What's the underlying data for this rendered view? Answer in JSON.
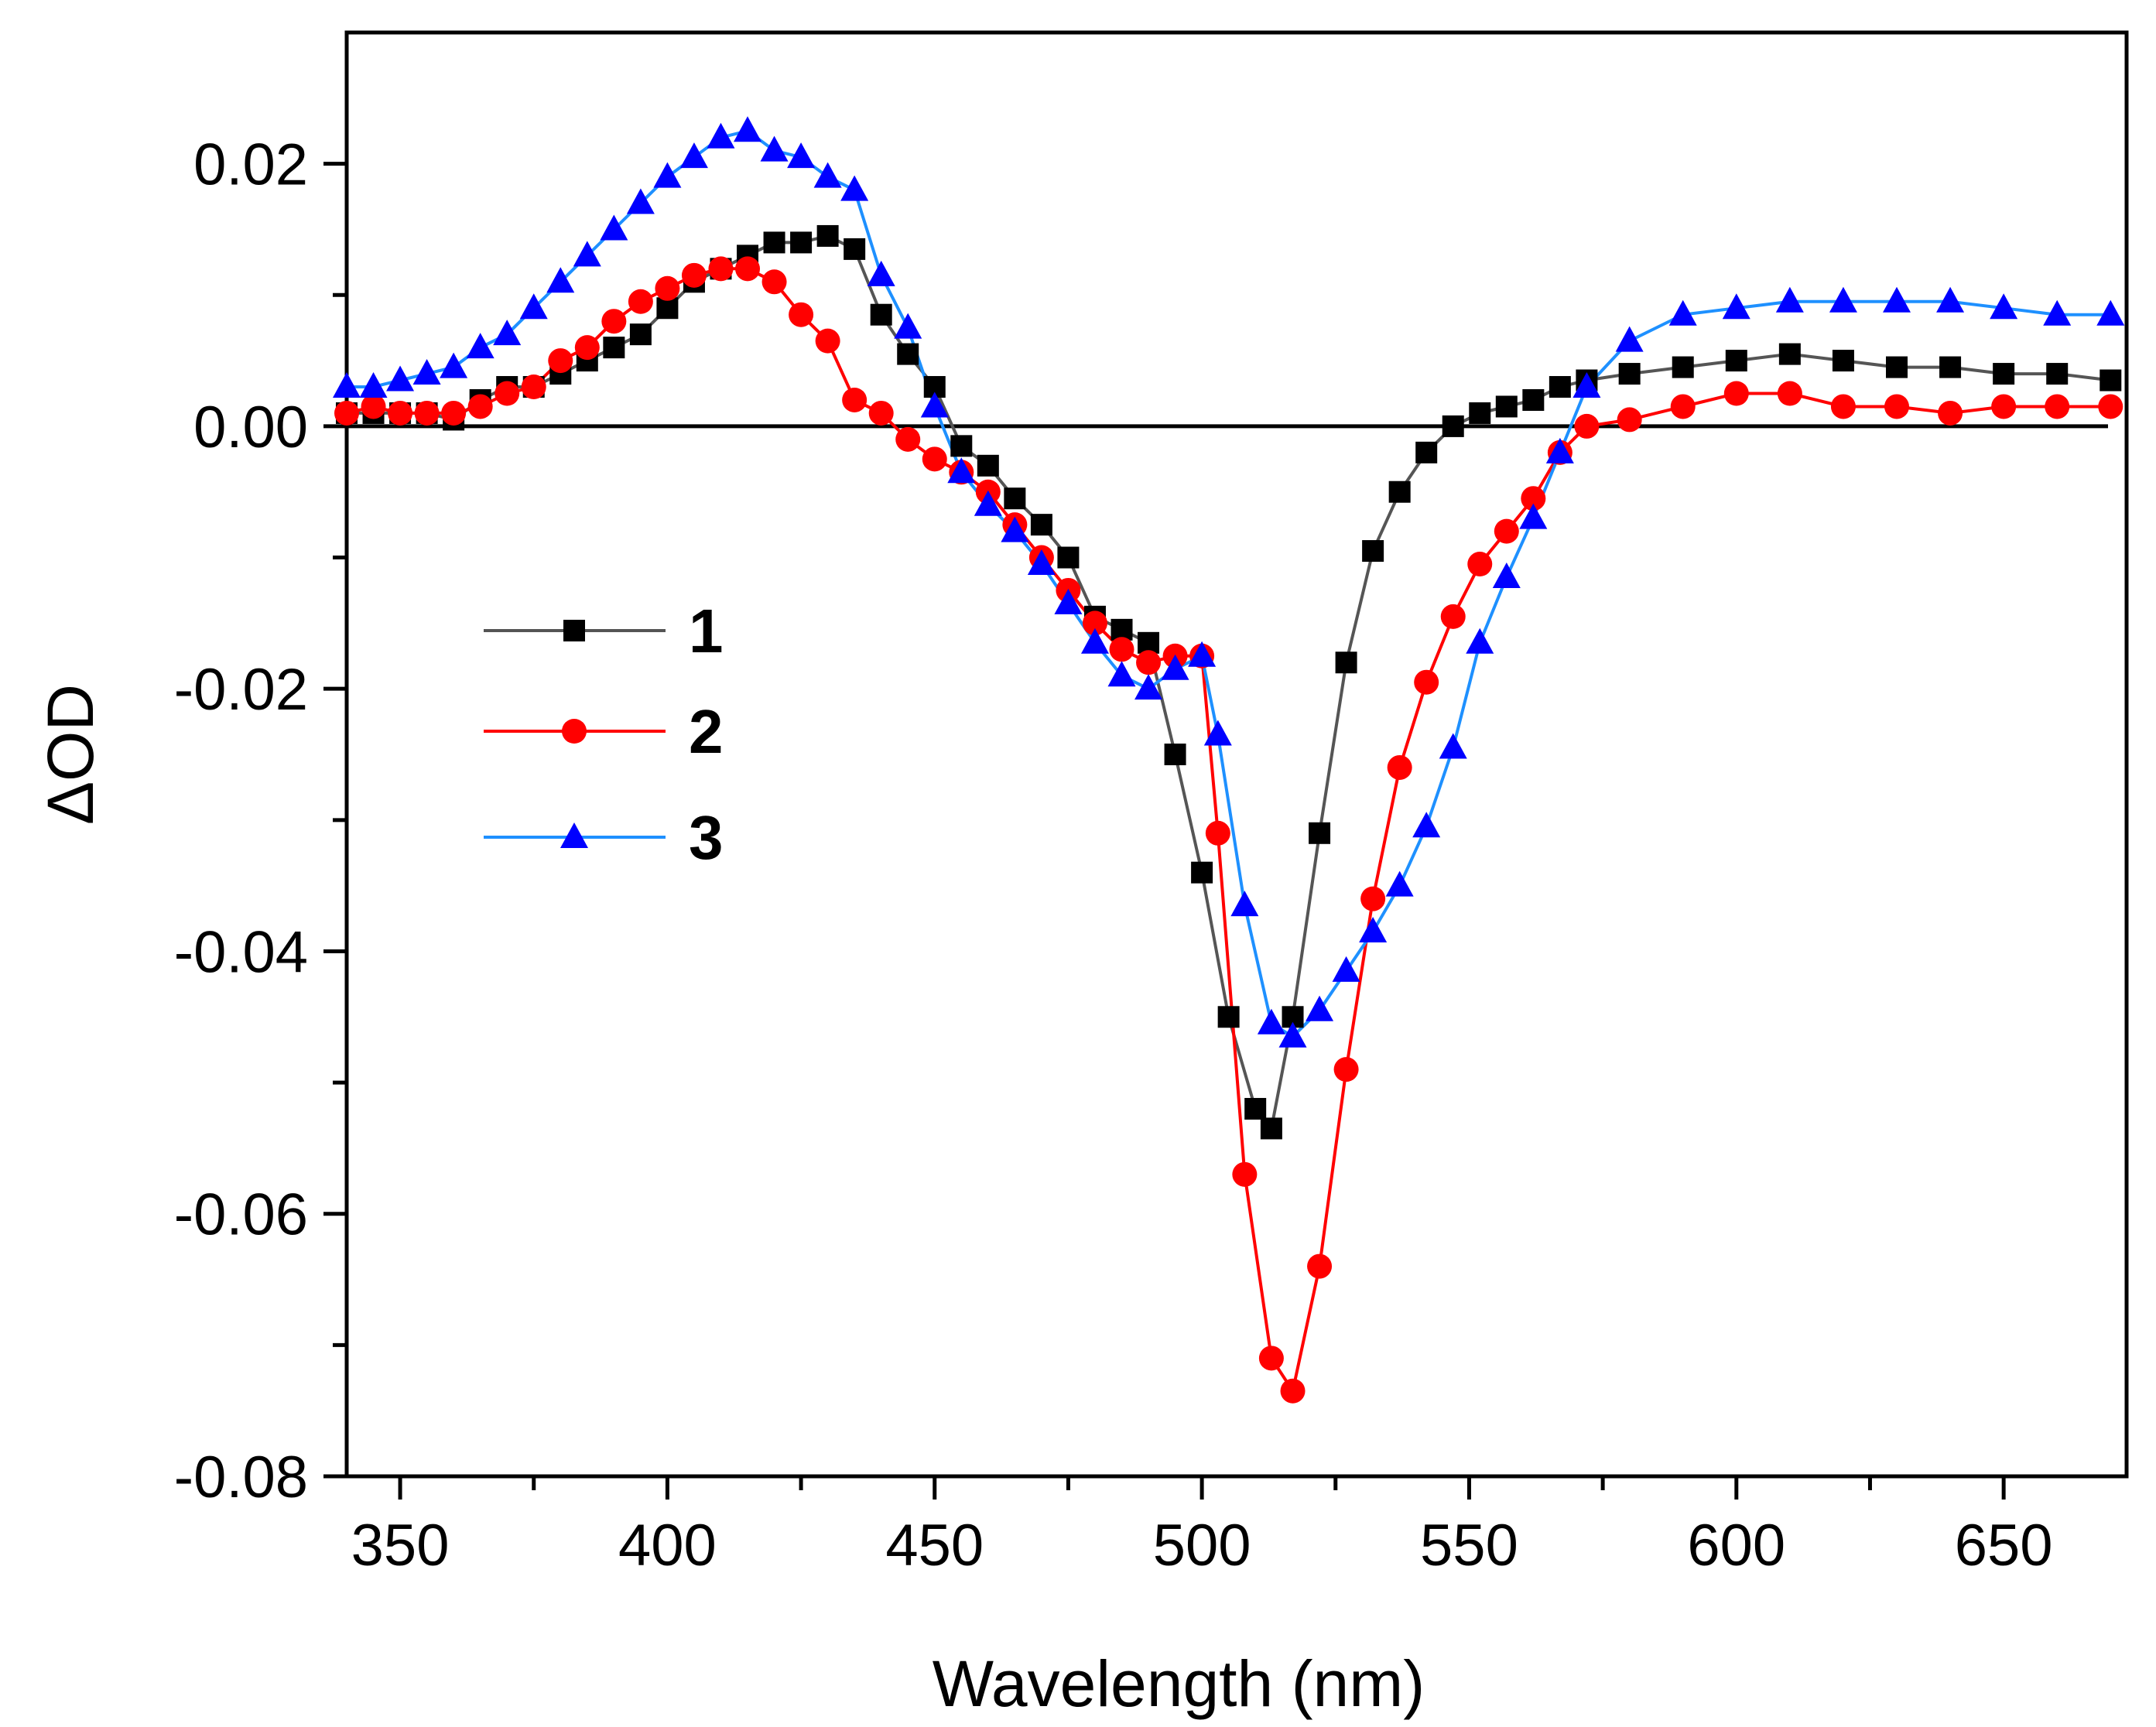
{
  "chart_data": {
    "type": "line",
    "title": "",
    "xlabel": "Wavelength (nm)",
    "ylabel": "ΔOD",
    "xlim": [
      340,
      673
    ],
    "ylim": [
      -0.08,
      0.03
    ],
    "xticks": [
      350,
      400,
      450,
      500,
      550,
      600,
      650
    ],
    "xtick_labels": [
      "350",
      "400",
      "450",
      "500",
      "550",
      "600",
      "650"
    ],
    "yticks": [
      0.02,
      0.0,
      -0.02,
      -0.04,
      -0.06,
      -0.08
    ],
    "ytick_labels": [
      "0.02",
      "0.00",
      "-0.02",
      "-0.04",
      "-0.06",
      "-0.08"
    ],
    "grid": false,
    "legend_position": "center-left",
    "zero_line": true,
    "series": [
      {
        "name": "1",
        "color": "#000000",
        "line_color": "#555555",
        "marker": "square",
        "x": [
          340,
          345,
          350,
          355,
          360,
          365,
          370,
          375,
          380,
          385,
          390,
          395,
          400,
          405,
          410,
          415,
          420,
          425,
          430,
          435,
          440,
          445,
          450,
          455,
          460,
          465,
          470,
          475,
          480,
          485,
          490,
          495,
          500,
          505,
          510,
          513,
          517,
          522,
          527,
          532,
          537,
          542,
          547,
          552,
          557,
          562,
          567,
          572,
          580,
          590,
          600,
          610,
          620,
          630,
          640,
          650,
          660,
          670
        ],
        "y": [
          0.001,
          0.001,
          0.001,
          0.001,
          0.0005,
          0.002,
          0.003,
          0.003,
          0.004,
          0.005,
          0.006,
          0.007,
          0.009,
          0.011,
          0.012,
          0.013,
          0.014,
          0.014,
          0.0145,
          0.0135,
          0.0085,
          0.0055,
          0.003,
          -0.0015,
          -0.003,
          -0.0055,
          -0.0075,
          -0.01,
          -0.0145,
          -0.0155,
          -0.0165,
          -0.025,
          -0.034,
          -0.045,
          -0.052,
          -0.0535,
          -0.045,
          -0.031,
          -0.018,
          -0.0095,
          -0.005,
          -0.002,
          0.0,
          0.001,
          0.0015,
          0.002,
          0.003,
          0.0035,
          0.004,
          0.0045,
          0.005,
          0.0055,
          0.005,
          0.0045,
          0.0045,
          0.004,
          0.004,
          0.0035
        ]
      },
      {
        "name": "2",
        "color": "#ff0000",
        "line_color": "#ff0000",
        "marker": "circle",
        "x": [
          340,
          345,
          350,
          355,
          360,
          365,
          370,
          375,
          380,
          385,
          390,
          395,
          400,
          405,
          410,
          415,
          420,
          425,
          430,
          435,
          440,
          445,
          450,
          455,
          460,
          465,
          470,
          475,
          480,
          485,
          490,
          495,
          500,
          503,
          508,
          513,
          517,
          522,
          527,
          532,
          537,
          542,
          547,
          552,
          557,
          562,
          567,
          572,
          580,
          590,
          600,
          610,
          620,
          630,
          640,
          650,
          660,
          670
        ],
        "y": [
          0.001,
          0.0015,
          0.001,
          0.001,
          0.001,
          0.0015,
          0.0025,
          0.003,
          0.005,
          0.006,
          0.008,
          0.0095,
          0.0105,
          0.0115,
          0.012,
          0.012,
          0.011,
          0.0085,
          0.0065,
          0.002,
          0.001,
          -0.001,
          -0.0025,
          -0.0035,
          -0.005,
          -0.0075,
          -0.01,
          -0.0125,
          -0.015,
          -0.017,
          -0.018,
          -0.0175,
          -0.0175,
          -0.031,
          -0.057,
          -0.071,
          -0.0735,
          -0.064,
          -0.049,
          -0.036,
          -0.026,
          -0.0195,
          -0.0145,
          -0.0105,
          -0.008,
          -0.0055,
          -0.002,
          0.0,
          0.0005,
          0.0015,
          0.0025,
          0.0025,
          0.0015,
          0.0015,
          0.001,
          0.0015,
          0.0015,
          0.0015
        ]
      },
      {
        "name": "3",
        "color": "#0000ff",
        "line_color": "#1e90ff",
        "marker": "triangle",
        "x": [
          340,
          345,
          350,
          355,
          360,
          365,
          370,
          375,
          380,
          385,
          390,
          395,
          400,
          405,
          410,
          415,
          420,
          425,
          430,
          435,
          440,
          445,
          450,
          455,
          460,
          465,
          470,
          475,
          480,
          485,
          490,
          495,
          500,
          503,
          508,
          513,
          517,
          522,
          527,
          532,
          537,
          542,
          547,
          552,
          557,
          562,
          567,
          572,
          580,
          590,
          600,
          610,
          620,
          630,
          640,
          650,
          660,
          670
        ],
        "y": [
          0.003,
          0.003,
          0.0035,
          0.004,
          0.0045,
          0.006,
          0.007,
          0.009,
          0.011,
          0.013,
          0.015,
          0.017,
          0.019,
          0.0205,
          0.022,
          0.0225,
          0.021,
          0.0205,
          0.019,
          0.018,
          0.0115,
          0.0075,
          0.0015,
          -0.0035,
          -0.006,
          -0.008,
          -0.0105,
          -0.0135,
          -0.0165,
          -0.019,
          -0.02,
          -0.0185,
          -0.0175,
          -0.0235,
          -0.0365,
          -0.0455,
          -0.0465,
          -0.0445,
          -0.0415,
          -0.0385,
          -0.035,
          -0.0305,
          -0.0245,
          -0.0165,
          -0.0115,
          -0.007,
          -0.002,
          0.003,
          0.0065,
          0.0085,
          0.009,
          0.0095,
          0.0095,
          0.0095,
          0.0095,
          0.009,
          0.0085,
          0.0085
        ]
      }
    ]
  }
}
